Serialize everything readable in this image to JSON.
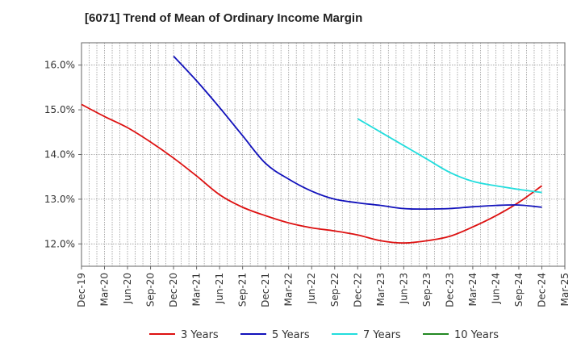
{
  "chart_data": {
    "type": "line",
    "title": "[6071]  Trend of Mean of Ordinary Income Margin",
    "xlabel": "",
    "ylabel": "",
    "categories": [
      "Dec-19",
      "Mar-20",
      "Jun-20",
      "Sep-20",
      "Dec-20",
      "Mar-21",
      "Jun-21",
      "Sep-21",
      "Dec-21",
      "Mar-22",
      "Jun-22",
      "Sep-22",
      "Dec-22",
      "Mar-23",
      "Jun-23",
      "Sep-23",
      "Dec-23",
      "Mar-24",
      "Jun-24",
      "Sep-24",
      "Dec-24",
      "Mar-25"
    ],
    "y_ticks": [
      "12.0%",
      "13.0%",
      "14.0%",
      "15.0%",
      "16.0%"
    ],
    "ylim": [
      11.5,
      16.5
    ],
    "grid": true,
    "legend_position": "bottom",
    "series": [
      {
        "name": "3 Years",
        "color": "#dd1111",
        "values": [
          15.12,
          14.85,
          14.6,
          14.28,
          13.92,
          13.52,
          13.1,
          12.82,
          12.63,
          12.47,
          12.36,
          12.29,
          12.2,
          12.07,
          12.02,
          12.07,
          12.17,
          12.38,
          12.63,
          12.93,
          13.3,
          null
        ]
      },
      {
        "name": "5 Years",
        "color": "#1111bb",
        "values": [
          null,
          null,
          null,
          null,
          16.2,
          15.65,
          15.05,
          14.42,
          13.8,
          13.45,
          13.18,
          13.0,
          12.92,
          12.86,
          12.79,
          12.78,
          12.79,
          12.83,
          12.86,
          12.87,
          12.82,
          null
        ]
      },
      {
        "name": "7 Years",
        "color": "#22dddd",
        "values": [
          null,
          null,
          null,
          null,
          null,
          null,
          null,
          null,
          null,
          null,
          null,
          null,
          14.8,
          14.5,
          14.2,
          13.9,
          13.6,
          13.4,
          13.3,
          13.22,
          13.15,
          null
        ]
      },
      {
        "name": "10 Years",
        "color": "#228822",
        "values": [
          null,
          null,
          null,
          null,
          null,
          null,
          null,
          null,
          null,
          null,
          null,
          null,
          null,
          null,
          null,
          null,
          null,
          null,
          null,
          null,
          null,
          null
        ]
      }
    ]
  }
}
